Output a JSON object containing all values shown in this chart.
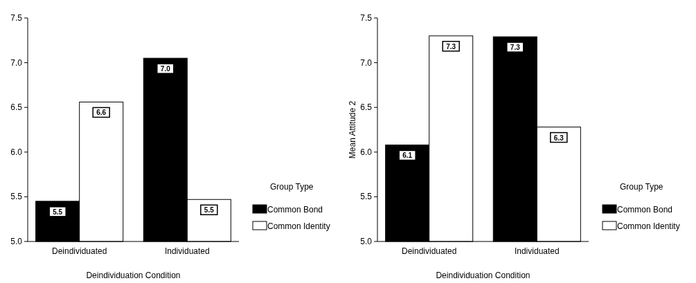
{
  "chart_data": [
    {
      "type": "bar",
      "categories": [
        "Deindividuated",
        "Individuated"
      ],
      "xlabel": "Deindividuation Condition",
      "legend_title": "Group Type",
      "legend": "right",
      "grid": false,
      "ylim": [
        5,
        7.5
      ],
      "yticks": [
        {
          "value": 5,
          "label": "5.0"
        },
        {
          "value": 5.5,
          "label": "5.5"
        },
        {
          "value": 6,
          "label": "6.0"
        },
        {
          "value": 6.5,
          "label": "6.5"
        },
        {
          "value": 7,
          "label": "7.0"
        },
        {
          "value": 7.5,
          "label": "7.5"
        }
      ],
      "series": [
        {
          "name": "Common Bond",
          "color": "#000000",
          "values": [
            5.45,
            7.05
          ],
          "value_labels": [
            "5.5",
            "7.0"
          ]
        },
        {
          "name": "Common Identity",
          "color": "#ffffff",
          "values": [
            6.56,
            5.47
          ],
          "value_labels": [
            "6.6",
            "5.5"
          ]
        }
      ]
    },
    {
      "type": "bar",
      "categories": [
        "Deindividuated",
        "Individuated"
      ],
      "xlabel": "Deindividuation Condition",
      "ylabel": "Mean Attitude 2",
      "legend_title": "Group Type",
      "legend": "right",
      "grid": false,
      "ylim": [
        5,
        7.5
      ],
      "yticks": [
        {
          "value": 5,
          "label": "5.0"
        },
        {
          "value": 5.5,
          "label": "5.5"
        },
        {
          "value": 6,
          "label": "6.0"
        },
        {
          "value": 6.5,
          "label": "6.5"
        },
        {
          "value": 7,
          "label": "7.0"
        },
        {
          "value": 7.5,
          "label": "7.5"
        }
      ],
      "series": [
        {
          "name": "Common Bond",
          "color": "#000000",
          "values": [
            6.08,
            7.29
          ],
          "value_labels": [
            "6.1",
            "7.3"
          ]
        },
        {
          "name": "Common Identity",
          "color": "#ffffff",
          "values": [
            7.3,
            6.28
          ],
          "value_labels": [
            "7.3",
            "6.3"
          ]
        }
      ]
    }
  ]
}
